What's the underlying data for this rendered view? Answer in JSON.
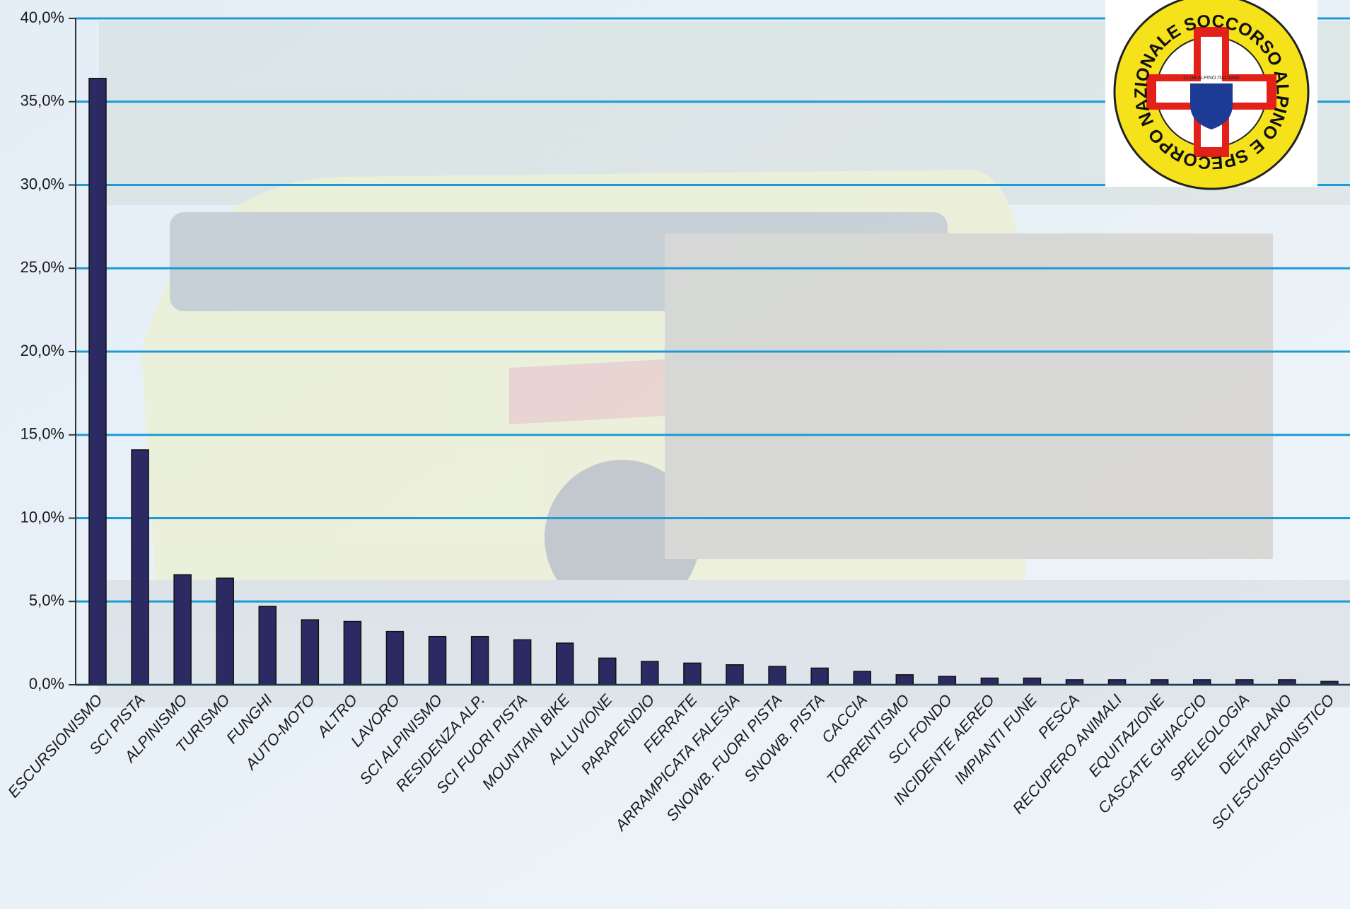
{
  "chart_data": {
    "type": "bar",
    "annotations": [
      "CORPO NAZIONALE SOCCORSO ALPINO E SPELEOLOGICO",
      "CLUB ALPINO ITALIANO"
    ],
    "categories": [
      "ESCURSIONISMO",
      "SCI PISTA",
      "ALPINISMO",
      "TURISMO",
      "FUNGHI",
      "AUTO-MOTO",
      "ALTRO",
      "LAVORO",
      "SCI ALPINISMO",
      "RESIDENZA ALP.",
      "SCI FUORI PISTA",
      "MOUNTAIN BIKE",
      "ALLUVIONE",
      "PARAPENDIO",
      "FERRATE",
      "ARRAMPICATA FALESIA",
      "SNOWB. FUORI PISTA",
      "SNOWB. PISTA",
      "CACCIA",
      "TORRENTISMO",
      "SCI FONDO",
      "INCIDENTE AEREO",
      "IMPIANTI FUNE",
      "PESCA",
      "RECUPERO ANIMALI",
      "EQUITAZIONE",
      "CASCATE GHIACCIO",
      "SPELEOLOGIA",
      "DELTAPLANO",
      "SCI ESCURSIONISTICO"
    ],
    "values": [
      36.4,
      14.1,
      6.6,
      6.4,
      4.7,
      3.9,
      3.8,
      3.2,
      2.9,
      2.9,
      2.7,
      2.5,
      1.6,
      1.4,
      1.3,
      1.2,
      1.1,
      1.0,
      0.8,
      0.6,
      0.5,
      0.4,
      0.4,
      0.3,
      0.3,
      0.3,
      0.3,
      0.3,
      0.3,
      0.2
    ],
    "color": "#2b2a63",
    "ylim": [
      0,
      40
    ],
    "yticks": [
      {
        "value": 0,
        "label": "0,0%"
      },
      {
        "value": 5,
        "label": "5,0%"
      },
      {
        "value": 10,
        "label": "10,0%"
      },
      {
        "value": 15,
        "label": "15,0%"
      },
      {
        "value": 20,
        "label": "20,0%"
      },
      {
        "value": 25,
        "label": "25,0%"
      },
      {
        "value": 30,
        "label": "30,0%"
      },
      {
        "value": 35,
        "label": "35,0%"
      },
      {
        "value": 40,
        "label": "40,0%"
      }
    ],
    "grid": true,
    "grid_color": "#1e9ad6"
  }
}
